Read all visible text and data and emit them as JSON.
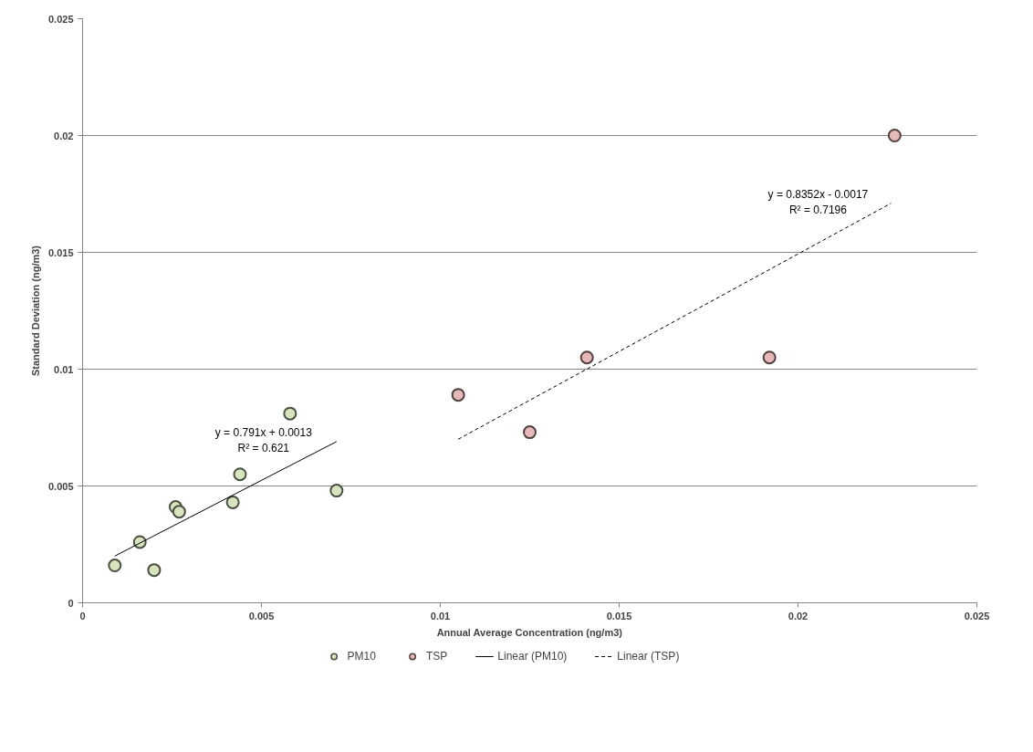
{
  "chart_data": {
    "type": "scatter",
    "xlabel": "Annual Average Concentration (ng/m3)",
    "ylabel": "Standard Deviation (ng/m3)",
    "xlim": [
      0,
      0.025
    ],
    "xticks": [
      0,
      0.005,
      0.01,
      0.015,
      0.02,
      0.025
    ],
    "ylim": [
      0,
      0.025
    ],
    "yticks": [
      0,
      0.005,
      0.01,
      0.015,
      0.02,
      0.025
    ],
    "grid": "y",
    "legend": "bottom",
    "marker": "circle",
    "series": [
      {
        "name": "PM10",
        "color": "#d7e4bd",
        "x": [
          0.0009,
          0.0016,
          0.002,
          0.0026,
          0.0027,
          0.0042,
          0.0044,
          0.0058,
          0.0071
        ],
        "values": [
          0.0016,
          0.0026,
          0.0014,
          0.0041,
          0.0039,
          0.0043,
          0.0055,
          0.0081,
          0.0048
        ]
      },
      {
        "name": "TSP",
        "color": "#e6b9b8",
        "x": [
          0.0105,
          0.0125,
          0.0141,
          0.0192,
          0.0227
        ],
        "values": [
          0.0089,
          0.0073,
          0.0105,
          0.0105,
          0.02
        ]
      },
      {
        "name": "Linear (PM10)",
        "type": "line",
        "marker": "none",
        "line_style": "solid",
        "color": "#000000",
        "x": [
          0.0009,
          0.0071
        ],
        "values": [
          0.002,
          0.0069
        ]
      },
      {
        "name": "Linear (TSP)",
        "type": "line",
        "marker": "none",
        "line_style": "dashed",
        "color": "#000000",
        "x": [
          0.0105,
          0.0226
        ],
        "values": [
          0.007,
          0.0171
        ]
      }
    ],
    "annotations": [
      "y = 0.791x + 0.0013\nR² = 0.621",
      "y = 0.8352x - 0.0017\nR² = 0.7196"
    ]
  }
}
